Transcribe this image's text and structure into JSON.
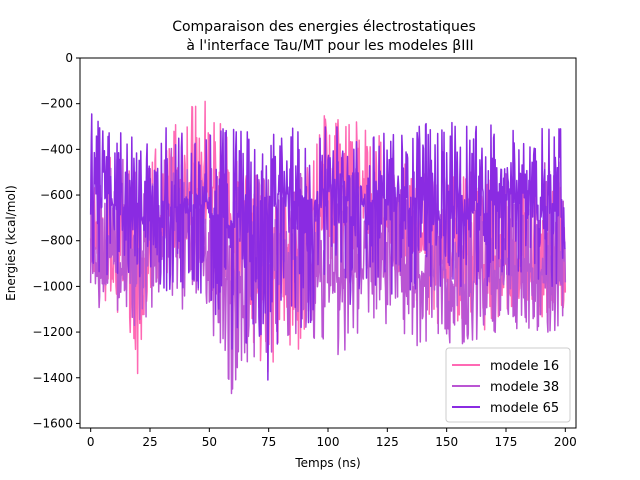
{
  "chart_data": {
    "type": "line",
    "title": "Comparaison des energies électrostatiques\n à l'interface Tau/MT pour les modeles βIII",
    "xlabel": "Temps (ns)",
    "ylabel": "Energies (kcal/mol)",
    "xlim": [
      -4.5,
      204.5
    ],
    "ylim": [
      -1620,
      0
    ],
    "xticks": [
      0,
      25,
      50,
      75,
      100,
      125,
      150,
      175,
      200
    ],
    "yticks": [
      0,
      -200,
      -400,
      -600,
      -800,
      -1000,
      -1200,
      -1400,
      -1600
    ],
    "grid": false,
    "legend_position": "lower right",
    "series": [
      {
        "name": "modele 16",
        "color": "#ff69b4",
        "x": [
          0,
          5,
          10,
          15,
          20,
          25,
          30,
          35,
          40,
          45,
          50,
          55,
          60,
          65,
          70,
          75,
          80,
          85,
          90,
          95,
          100,
          105,
          110,
          115,
          120,
          125,
          130,
          135,
          140,
          145,
          150,
          155,
          160,
          165,
          170,
          175,
          180,
          185,
          190,
          195,
          200
        ],
        "mean": [
          -760,
          -820,
          -850,
          -900,
          -950,
          -820,
          -720,
          -650,
          -610,
          -560,
          -540,
          -640,
          -760,
          -820,
          -880,
          -920,
          -900,
          -860,
          -810,
          -700,
          -620,
          -560,
          -580,
          -620,
          -640,
          -700,
          -740,
          -760,
          -800,
          -880,
          -900,
          -880,
          -870,
          -900,
          -880,
          -860,
          -840,
          -860,
          -900,
          -900,
          -880
        ],
        "min": [
          -960,
          -1050,
          -1100,
          -1150,
          -1470,
          -1100,
          -1000,
          -900,
          -850,
          -800,
          -850,
          -950,
          -1150,
          -1200,
          -1300,
          -1380,
          -1250,
          -1300,
          -1250,
          -1100,
          -950,
          -900,
          -850,
          -900,
          -900,
          -950,
          -1000,
          -1050,
          -1100,
          -1150,
          -1200,
          -1150,
          -1150,
          -1200,
          -1150,
          -1100,
          -1100,
          -1100,
          -1150,
          -1150,
          -1100
        ],
        "max": [
          -400,
          -500,
          -400,
          -450,
          -500,
          -380,
          -300,
          -300,
          -250,
          -180,
          -120,
          -300,
          -400,
          -450,
          -500,
          -500,
          -550,
          -500,
          -450,
          -350,
          -200,
          -250,
          -250,
          -300,
          -300,
          -350,
          -400,
          -450,
          -500,
          -550,
          -550,
          -500,
          -550,
          -550,
          -500,
          -500,
          -500,
          -500,
          -500,
          -550,
          -500
        ]
      },
      {
        "name": "modele 38",
        "color": "#ba55d3",
        "x": [
          0,
          5,
          10,
          15,
          20,
          25,
          30,
          35,
          40,
          45,
          50,
          55,
          60,
          65,
          70,
          75,
          80,
          85,
          90,
          95,
          100,
          105,
          110,
          115,
          120,
          125,
          130,
          135,
          140,
          145,
          150,
          155,
          160,
          165,
          170,
          175,
          180,
          185,
          190,
          195,
          200
        ],
        "mean": [
          -850,
          -900,
          -860,
          -880,
          -900,
          -800,
          -760,
          -800,
          -820,
          -850,
          -880,
          -950,
          -1000,
          -950,
          -900,
          -920,
          -900,
          -880,
          -900,
          -920,
          -950,
          -980,
          -950,
          -930,
          -900,
          -880,
          -900,
          -920,
          -940,
          -960,
          -980,
          -1000,
          -980,
          -960,
          -950,
          -950,
          -930,
          -920,
          -950,
          -950,
          -950
        ],
        "min": [
          -1000,
          -1130,
          -1100,
          -1150,
          -1200,
          -1100,
          -1050,
          -1100,
          -1100,
          -1150,
          -1200,
          -1250,
          -1540,
          -1450,
          -1300,
          -1350,
          -1300,
          -1250,
          -1250,
          -1250,
          -1300,
          -1300,
          -1250,
          -1200,
          -1200,
          -1200,
          -1250,
          -1300,
          -1300,
          -1250,
          -1250,
          -1300,
          -1250,
          -1250,
          -1250,
          -1200,
          -1200,
          -1200,
          -1200,
          -1200,
          -1150
        ],
        "max": [
          -300,
          -500,
          -420,
          -450,
          -500,
          -400,
          -380,
          -400,
          -450,
          -500,
          -450,
          -550,
          -500,
          -500,
          -500,
          -520,
          -500,
          -520,
          -500,
          -500,
          -480,
          -500,
          -450,
          -500,
          -500,
          -500,
          -450,
          -500,
          -450,
          -500,
          -500,
          -520,
          -500,
          -500,
          -480,
          -500,
          -500,
          -500,
          -500,
          -300,
          -500
        ]
      },
      {
        "name": "modele 65",
        "color": "#8a2be2",
        "x": [
          0,
          5,
          10,
          15,
          20,
          25,
          30,
          35,
          40,
          45,
          50,
          55,
          60,
          65,
          70,
          75,
          80,
          85,
          90,
          95,
          100,
          105,
          110,
          115,
          120,
          125,
          130,
          135,
          140,
          145,
          150,
          155,
          160,
          165,
          170,
          175,
          180,
          185,
          190,
          195,
          200
        ],
        "mean": [
          -600,
          -620,
          -640,
          -660,
          -650,
          -640,
          -650,
          -660,
          -640,
          -620,
          -650,
          -700,
          -720,
          -700,
          -650,
          -640,
          -650,
          -660,
          -640,
          -620,
          -600,
          -600,
          -620,
          -640,
          -620,
          -600,
          -640,
          -660,
          -620,
          -600,
          -580,
          -600,
          -620,
          -640,
          -620,
          -600,
          -600,
          -600,
          -620,
          -640,
          -620
        ],
        "min": [
          -900,
          -950,
          -1000,
          -1000,
          -1050,
          -950,
          -1050,
          -1100,
          -1000,
          -1000,
          -1100,
          -1150,
          -1300,
          -1250,
          -1300,
          -1450,
          -1300,
          -1200,
          -1250,
          -1150,
          -1100,
          -1150,
          -1100,
          -1000,
          -1000,
          -1050,
          -1050,
          -1050,
          -1000,
          -1000,
          -1000,
          -1000,
          -1000,
          -1000,
          -1000,
          -950,
          -950,
          -950,
          -1000,
          -1000,
          -950
        ],
        "max": [
          -240,
          -300,
          -350,
          -300,
          -400,
          -350,
          -300,
          -300,
          -300,
          -250,
          -300,
          -300,
          -300,
          -280,
          -300,
          -350,
          -300,
          -300,
          -350,
          -250,
          -300,
          -300,
          -300,
          -350,
          -330,
          -300,
          -350,
          -300,
          -250,
          -300,
          -300,
          -250,
          -300,
          -300,
          -280,
          -250,
          -300,
          -350,
          -300,
          -300,
          -300
        ]
      }
    ]
  }
}
